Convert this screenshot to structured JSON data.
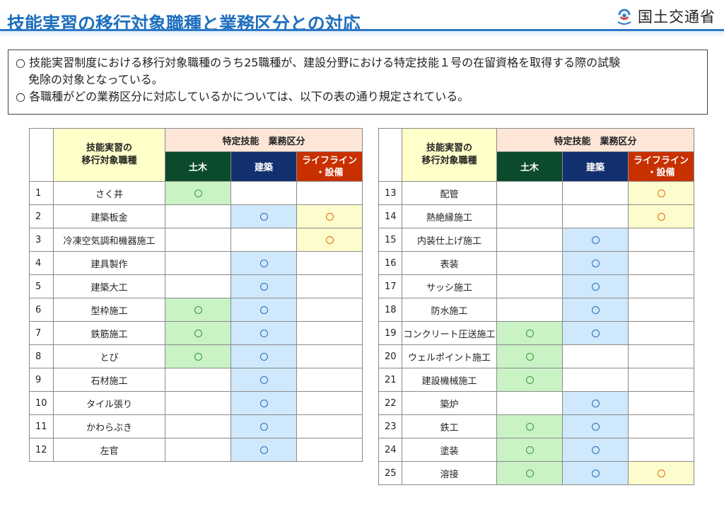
{
  "header": {
    "title": "技能実習の移行対象職種と業務区分との対応",
    "ministry": "国土交通省",
    "ministry_icon": "mlit-logo-icon"
  },
  "note": {
    "bullet": "○",
    "line1a": "技能実習制度における移行対象職種のうち25職種が、建設分野における特定技能１号の在留資格を取得する際の試験",
    "line1b": "免除の対象となっている。",
    "line2": "各職種がどの業務区分に対応しているかについては、以下の表の通り規定されている。"
  },
  "table_headers": {
    "job": "技能実習の\n移行対象職種",
    "group": "特定技能　業務区分",
    "doboku": "土木",
    "kenchiku": "建築",
    "lifeline": "ライフライン\n・設備"
  },
  "mark": "○",
  "colors": {
    "doboku": "#0b4a2a",
    "kenchiku": "#13306e",
    "lifeline": "#c83000",
    "title": "#1f6fbe"
  },
  "rows_left": [
    {
      "no": "1",
      "job": "さく井",
      "doboku": true,
      "kenchiku": false,
      "lifeline": false
    },
    {
      "no": "2",
      "job": "建築板金",
      "doboku": false,
      "kenchiku": true,
      "lifeline": true
    },
    {
      "no": "3",
      "job": "冷凍空気調和機器施工",
      "doboku": false,
      "kenchiku": false,
      "lifeline": true
    },
    {
      "no": "4",
      "job": "建具製作",
      "doboku": false,
      "kenchiku": true,
      "lifeline": false
    },
    {
      "no": "5",
      "job": "建築大工",
      "doboku": false,
      "kenchiku": true,
      "lifeline": false
    },
    {
      "no": "6",
      "job": "型枠施工",
      "doboku": true,
      "kenchiku": true,
      "lifeline": false
    },
    {
      "no": "7",
      "job": "鉄筋施工",
      "doboku": true,
      "kenchiku": true,
      "lifeline": false
    },
    {
      "no": "8",
      "job": "とび",
      "doboku": true,
      "kenchiku": true,
      "lifeline": false
    },
    {
      "no": "9",
      "job": "石材施工",
      "doboku": false,
      "kenchiku": true,
      "lifeline": false
    },
    {
      "no": "10",
      "job": "タイル張り",
      "doboku": false,
      "kenchiku": true,
      "lifeline": false
    },
    {
      "no": "11",
      "job": "かわらぶき",
      "doboku": false,
      "kenchiku": true,
      "lifeline": false
    },
    {
      "no": "12",
      "job": "左官",
      "doboku": false,
      "kenchiku": true,
      "lifeline": false
    }
  ],
  "rows_right": [
    {
      "no": "13",
      "job": "配管",
      "doboku": false,
      "kenchiku": false,
      "lifeline": true
    },
    {
      "no": "14",
      "job": "熱絶縁施工",
      "doboku": false,
      "kenchiku": false,
      "lifeline": true
    },
    {
      "no": "15",
      "job": "内装仕上げ施工",
      "doboku": false,
      "kenchiku": true,
      "lifeline": false
    },
    {
      "no": "16",
      "job": "表装",
      "doboku": false,
      "kenchiku": true,
      "lifeline": false
    },
    {
      "no": "17",
      "job": "サッシ施工",
      "doboku": false,
      "kenchiku": true,
      "lifeline": false
    },
    {
      "no": "18",
      "job": "防水施工",
      "doboku": false,
      "kenchiku": true,
      "lifeline": false
    },
    {
      "no": "19",
      "job": "コンクリート圧送施工",
      "doboku": true,
      "kenchiku": true,
      "lifeline": false
    },
    {
      "no": "20",
      "job": "ウェルポイント施工",
      "doboku": true,
      "kenchiku": false,
      "lifeline": false
    },
    {
      "no": "21",
      "job": "建設機械施工",
      "doboku": true,
      "kenchiku": false,
      "lifeline": false
    },
    {
      "no": "22",
      "job": "築炉",
      "doboku": false,
      "kenchiku": true,
      "lifeline": false
    },
    {
      "no": "23",
      "job": "鉄工",
      "doboku": true,
      "kenchiku": true,
      "lifeline": false
    },
    {
      "no": "24",
      "job": "塗装",
      "doboku": true,
      "kenchiku": true,
      "lifeline": false
    },
    {
      "no": "25",
      "job": "溶接",
      "doboku": true,
      "kenchiku": true,
      "lifeline": true
    }
  ]
}
